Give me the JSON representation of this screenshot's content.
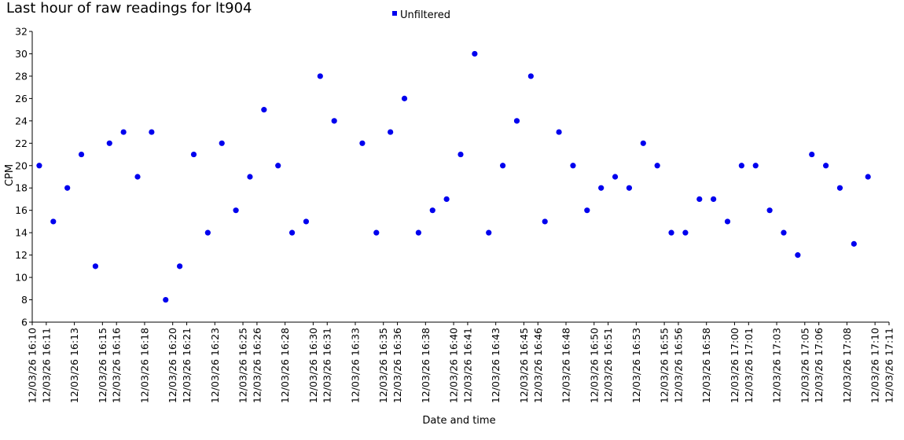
{
  "chart_data": {
    "type": "scatter",
    "title": "Last hour of raw readings for lt904",
    "xlabel": "Date and time",
    "ylabel": "CPM",
    "ylim": [
      6,
      32
    ],
    "yticks": [
      6,
      8,
      10,
      12,
      14,
      16,
      18,
      20,
      22,
      24,
      26,
      28,
      30,
      32
    ],
    "xlim": [
      "12/03/26 16:10",
      "12/03/26 17:11"
    ],
    "xticks": [
      "12/03/26 16:10",
      "12/03/26 16:11",
      "12/03/26 16:13",
      "12/03/26 16:15",
      "12/03/26 16:16",
      "12/03/26 16:18",
      "12/03/26 16:20",
      "12/03/26 16:21",
      "12/03/26 16:23",
      "12/03/26 16:25",
      "12/03/26 16:26",
      "12/03/26 16:28",
      "12/03/26 16:30",
      "12/03/26 16:31",
      "12/03/26 16:33",
      "12/03/26 16:35",
      "12/03/26 16:36",
      "12/03/26 16:38",
      "12/03/26 16:40",
      "12/03/26 16:41",
      "12/03/26 16:43",
      "12/03/26 16:45",
      "12/03/26 16:46",
      "12/03/26 16:48",
      "12/03/26 16:50",
      "12/03/26 16:51",
      "12/03/26 16:53",
      "12/03/26 16:55",
      "12/03/26 16:56",
      "12/03/26 16:58",
      "12/03/26 17:00",
      "12/03/26 17:01",
      "12/03/26 17:03",
      "12/03/26 17:05",
      "12/03/26 17:06",
      "12/03/26 17:08",
      "12/03/26 17:10",
      "12/03/26 17:11"
    ],
    "legend_position": "top-center",
    "grid": false,
    "series": [
      {
        "name": "Unfiltered",
        "color": "#0000ee",
        "x": [
          "12/03/26 16:10:30",
          "12/03/26 16:11:30",
          "12/03/26 16:12:30",
          "12/03/26 16:13:30",
          "12/03/26 16:14:30",
          "12/03/26 16:15:30",
          "12/03/26 16:16:30",
          "12/03/26 16:17:30",
          "12/03/26 16:18:30",
          "12/03/26 16:19:30",
          "12/03/26 16:20:30",
          "12/03/26 16:21:30",
          "12/03/26 16:22:30",
          "12/03/26 16:23:30",
          "12/03/26 16:24:30",
          "12/03/26 16:25:30",
          "12/03/26 16:26:30",
          "12/03/26 16:27:30",
          "12/03/26 16:28:30",
          "12/03/26 16:29:30",
          "12/03/26 16:30:30",
          "12/03/26 16:31:30",
          "12/03/26 16:33:30",
          "12/03/26 16:34:30",
          "12/03/26 16:35:30",
          "12/03/26 16:36:30",
          "12/03/26 16:37:30",
          "12/03/26 16:38:30",
          "12/03/26 16:39:30",
          "12/03/26 16:40:30",
          "12/03/26 16:41:30",
          "12/03/26 16:42:30",
          "12/03/26 16:43:30",
          "12/03/26 16:44:30",
          "12/03/26 16:45:30",
          "12/03/26 16:46:30",
          "12/03/26 16:47:30",
          "12/03/26 16:48:30",
          "12/03/26 16:49:30",
          "12/03/26 16:50:30",
          "12/03/26 16:51:30",
          "12/03/26 16:52:30",
          "12/03/26 16:53:30",
          "12/03/26 16:54:30",
          "12/03/26 16:55:30",
          "12/03/26 16:56:30",
          "12/03/26 16:57:30",
          "12/03/26 16:58:30",
          "12/03/26 16:59:30",
          "12/03/26 17:00:30",
          "12/03/26 17:01:30",
          "12/03/26 17:02:30",
          "12/03/26 17:03:30",
          "12/03/26 17:04:30",
          "12/03/26 17:05:30",
          "12/03/26 17:06:30",
          "12/03/26 17:07:30",
          "12/03/26 17:08:30",
          "12/03/26 17:09:30"
        ],
        "y": [
          20,
          15,
          18,
          21,
          11,
          22,
          23,
          19,
          23,
          8,
          11,
          21,
          14,
          22,
          16,
          19,
          25,
          20,
          14,
          15,
          28,
          24,
          22,
          14,
          23,
          26,
          14,
          16,
          17,
          21,
          30,
          14,
          20,
          24,
          28,
          15,
          23,
          20,
          16,
          18,
          19,
          18,
          22,
          20,
          14,
          14,
          17,
          17,
          15,
          20,
          20,
          16,
          14,
          12,
          21,
          20,
          18,
          13,
          19
        ]
      }
    ]
  }
}
